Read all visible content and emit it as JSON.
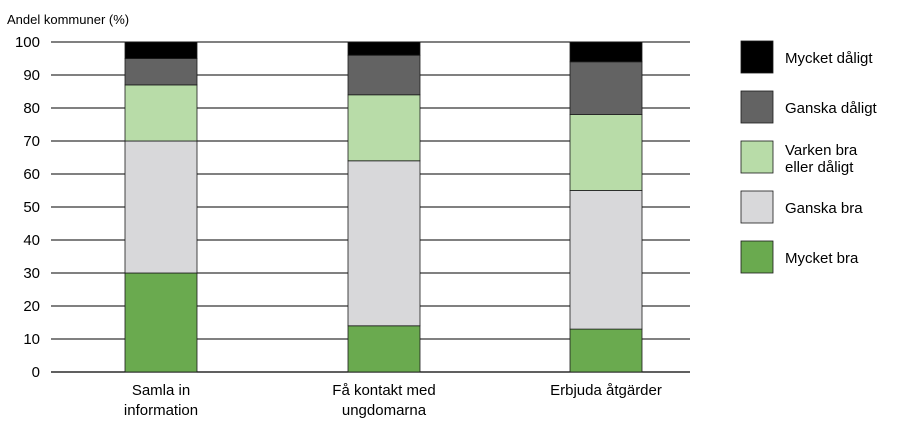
{
  "chart_data": {
    "type": "bar",
    "stacked": true,
    "title": "",
    "xlabel": "",
    "ylabel": "Andel kommuner (%)",
    "ylim": [
      0,
      100
    ],
    "yticks": [
      0,
      10,
      20,
      30,
      40,
      50,
      60,
      70,
      80,
      90,
      100
    ],
    "grid": true,
    "legend_position": "right",
    "categories": [
      [
        "Samla in",
        "information"
      ],
      [
        "Få kontakt med",
        "ungdomarna"
      ],
      [
        "Erbjuda åtgärder"
      ]
    ],
    "series": [
      {
        "name": [
          "Mycket bra"
        ],
        "color": "#6aaa4f",
        "values": [
          30,
          14,
          13
        ]
      },
      {
        "name": [
          "Ganska bra"
        ],
        "color": "#d8d8da",
        "values": [
          40,
          50,
          42
        ]
      },
      {
        "name": [
          "Varken bra",
          "eller dåligt"
        ],
        "color": "#b8dca8",
        "values": [
          17,
          20,
          23
        ]
      },
      {
        "name": [
          "Ganska dåligt"
        ],
        "color": "#636363",
        "values": [
          8,
          12,
          16
        ]
      },
      {
        "name": [
          "Mycket dåligt"
        ],
        "color": "#000000",
        "values": [
          5,
          4,
          6
        ]
      }
    ]
  }
}
